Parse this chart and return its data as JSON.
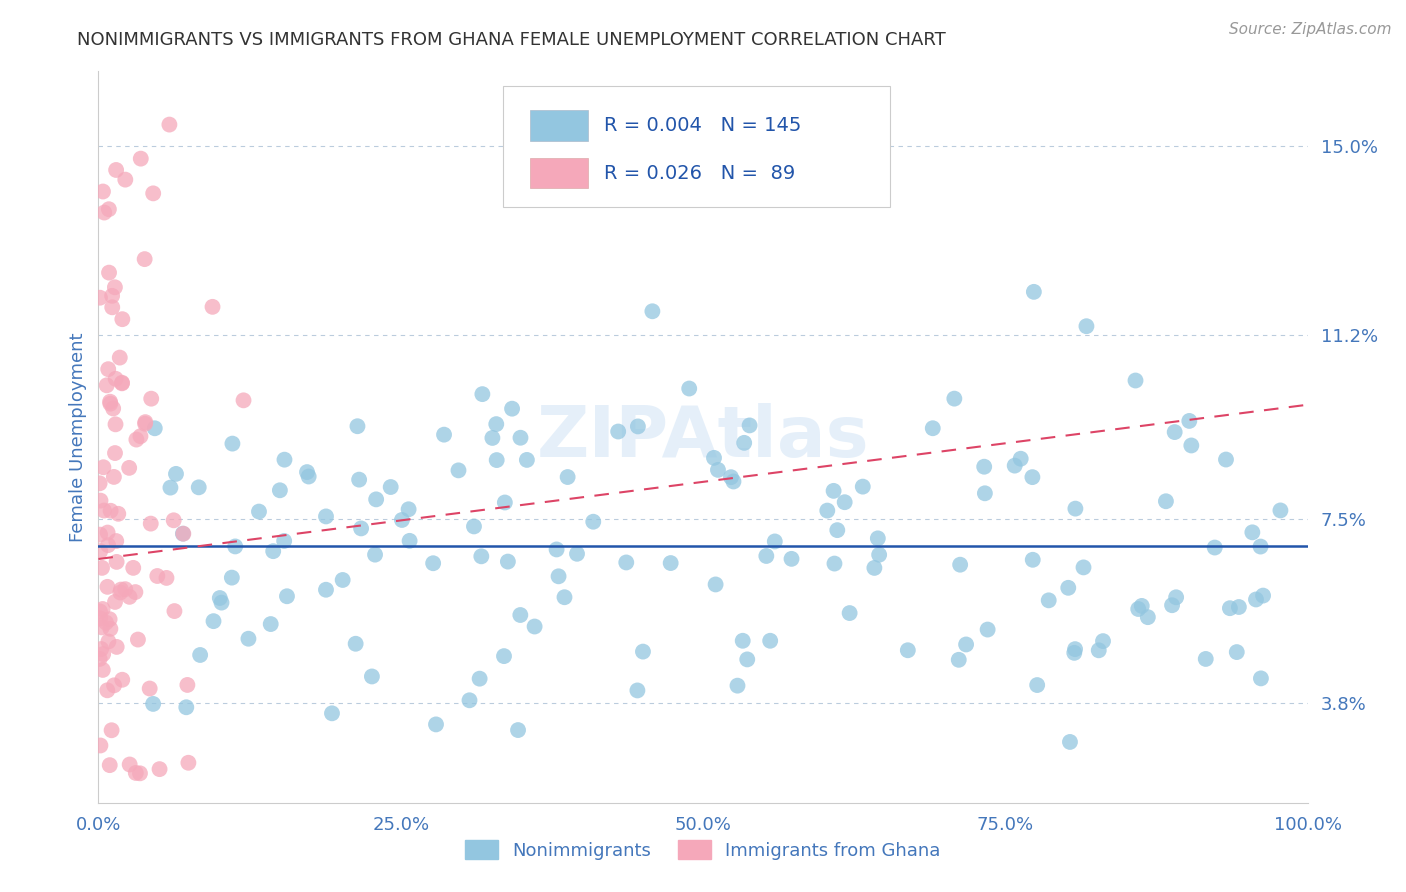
{
  "title": "NONIMMIGRANTS VS IMMIGRANTS FROM GHANA FEMALE UNEMPLOYMENT CORRELATION CHART",
  "source": "Source: ZipAtlas.com",
  "ylabel": "Female Unemployment",
  "xlim": [
    0.0,
    1.0
  ],
  "ylim": [
    0.018,
    0.165
  ],
  "yticks": [
    0.038,
    0.075,
    0.112,
    0.15
  ],
  "ytick_labels": [
    "3.8%",
    "7.5%",
    "11.2%",
    "15.0%"
  ],
  "xticks": [
    0.0,
    0.25,
    0.5,
    0.75,
    1.0
  ],
  "xtick_labels": [
    "0.0%",
    "25.0%",
    "50.0%",
    "75.0%",
    "100.0%"
  ],
  "blue_R": 0.004,
  "blue_N": 145,
  "pink_R": 0.026,
  "pink_N": 89,
  "blue_color": "#93C6E0",
  "pink_color": "#F5A8BA",
  "blue_trend_color": "#2255AA",
  "pink_trend_color": "#DD4466",
  "axis_label_color": "#4477BB",
  "tick_label_color": "#4477BB",
  "grid_color": "#BBCCDD",
  "background_color": "#FFFFFF",
  "watermark_text": "ZIPAtlas",
  "watermark_color": "#AACCEE",
  "watermark_alpha": 0.3,
  "legend_text_color": "#2255AA",
  "source_color": "#999999"
}
